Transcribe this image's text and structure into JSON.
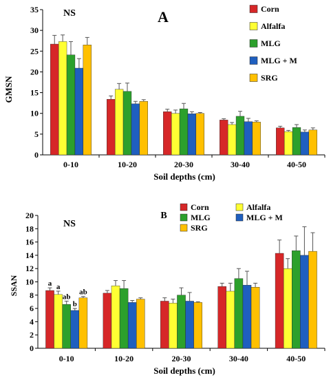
{
  "chart_data": [
    {
      "type": "bar",
      "panel_label": "A",
      "annotation": "NS",
      "title": "",
      "ylabel": "GMSN",
      "xlabel": "Soil depths (cm)",
      "ylim": [
        0,
        35
      ],
      "yticks": [
        0,
        5,
        10,
        15,
        20,
        25,
        30,
        35
      ],
      "categories": [
        "0-10",
        "10-20",
        "20-30",
        "30-40",
        "40-50"
      ],
      "legend_position": "top-right",
      "series": [
        {
          "name": "Corn",
          "color": "#d62728",
          "values": [
            26.7,
            13.4,
            10.4,
            8.4,
            6.5
          ],
          "errors": [
            2.1,
            0.8,
            0.6,
            0.3,
            0.4
          ]
        },
        {
          "name": "Alfalfa",
          "color": "#ffff33",
          "values": [
            27.3,
            15.8,
            10.0,
            7.3,
            5.6
          ],
          "errors": [
            1.6,
            1.4,
            0.8,
            0.5,
            0.3
          ]
        },
        {
          "name": "MLG",
          "color": "#2ca02c",
          "values": [
            24.1,
            15.3,
            11.1,
            9.3,
            6.6
          ],
          "errors": [
            3.2,
            2.0,
            1.3,
            1.2,
            0.7
          ]
        },
        {
          "name": "MLG + M",
          "color": "#1f5fbf",
          "values": [
            20.9,
            12.3,
            9.9,
            8.0,
            5.5
          ],
          "errors": [
            2.3,
            0.6,
            0.5,
            0.8,
            0.5
          ]
        },
        {
          "name": "SRG",
          "color": "#ffc000",
          "values": [
            26.5,
            12.9,
            10.0,
            7.9,
            6.0
          ],
          "errors": [
            1.8,
            0.4,
            0.2,
            0.3,
            0.5
          ]
        }
      ],
      "annotations": []
    },
    {
      "type": "bar",
      "panel_label": "B",
      "annotation": "NS",
      "title": "",
      "ylabel": "SSAN",
      "xlabel": "Soil depths (cm)",
      "ylim": [
        0,
        20
      ],
      "yticks": [
        0,
        2,
        4,
        6,
        8,
        10,
        12,
        14,
        16,
        18,
        20
      ],
      "categories": [
        "0-10",
        "10-20",
        "20-30",
        "30-40",
        "40-50"
      ],
      "legend_position": "top",
      "series": [
        {
          "name": "Corn",
          "color": "#d62728",
          "values": [
            8.7,
            8.3,
            7.1,
            9.3,
            14.3
          ],
          "errors": [
            0.4,
            0.4,
            0.5,
            0.5,
            2.0
          ]
        },
        {
          "name": "Alfalfa",
          "color": "#ffff33",
          "values": [
            8.1,
            9.4,
            6.8,
            8.6,
            12.0
          ],
          "errors": [
            0.5,
            0.8,
            0.6,
            1.2,
            1.5
          ]
        },
        {
          "name": "MLG",
          "color": "#2ca02c",
          "values": [
            6.6,
            9.0,
            8.0,
            10.5,
            14.7
          ],
          "errors": [
            0.5,
            1.2,
            1.1,
            1.5,
            2.2
          ]
        },
        {
          "name": "MLG + M",
          "color": "#1f5fbf",
          "values": [
            5.7,
            6.9,
            7.1,
            9.5,
            14.0
          ],
          "errors": [
            0.3,
            0.3,
            1.3,
            2.1,
            4.3
          ]
        },
        {
          "name": "SRG",
          "color": "#ffc000",
          "values": [
            7.6,
            7.4,
            6.9,
            9.2,
            14.6
          ],
          "errors": [
            0.2,
            0.2,
            0.1,
            0.6,
            2.8
          ]
        }
      ],
      "annotations": [
        {
          "category": 0,
          "series": 0,
          "text": "a"
        },
        {
          "category": 0,
          "series": 1,
          "text": "a"
        },
        {
          "category": 0,
          "series": 2,
          "text": "ab"
        },
        {
          "category": 0,
          "series": 3,
          "text": "b"
        },
        {
          "category": 0,
          "series": 4,
          "text": "ab"
        }
      ]
    }
  ]
}
